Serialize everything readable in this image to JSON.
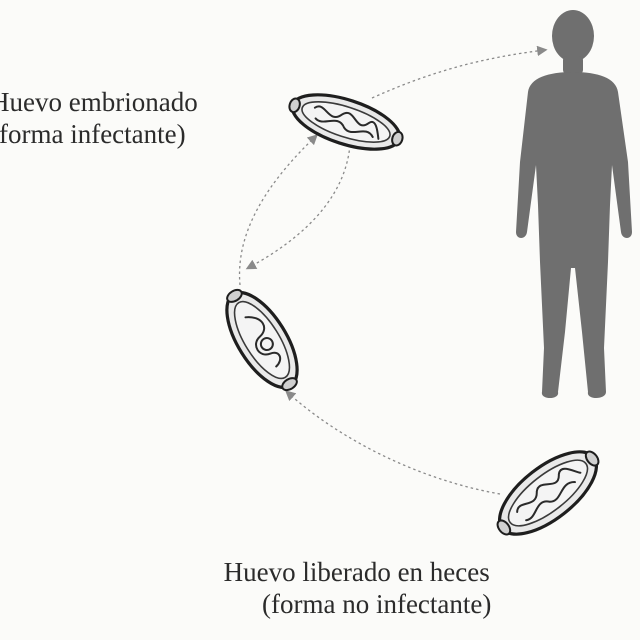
{
  "labels": {
    "embryonated_line1": "Huevo embrionado",
    "embryonated_line2": "(forma infectante)",
    "released_line1": "Huevo liberado en heces",
    "released_line2": "(forma no infectante)"
  },
  "colors": {
    "background": "#fbfbf9",
    "human_silhouette": "#6f6f6f",
    "egg_outline": "#1e1e1e",
    "arrow": "#8a8a8a"
  }
}
